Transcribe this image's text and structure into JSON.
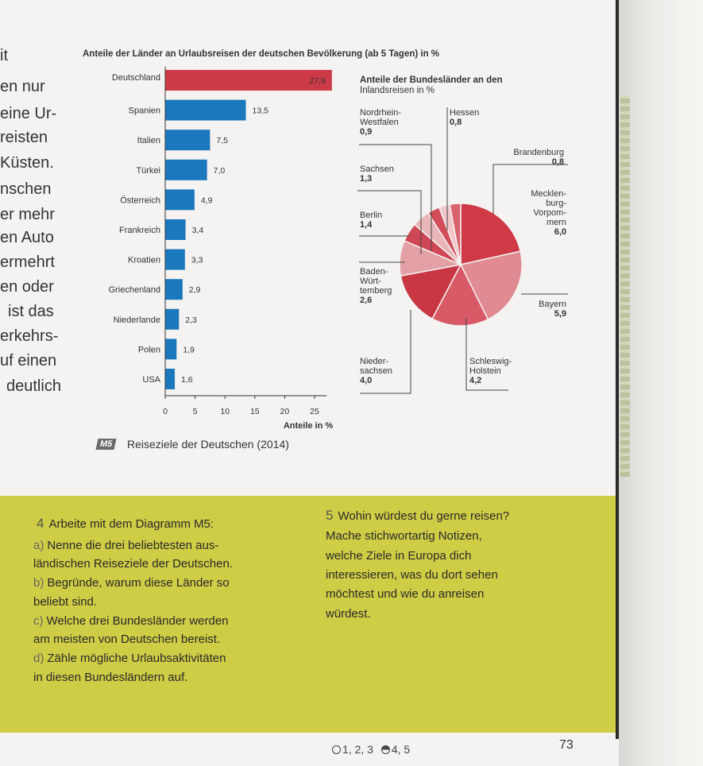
{
  "left_text_cut": [
    "it",
    "en nur",
    "eine Ur-",
    "reisten",
    "Küsten.",
    "nschen",
    "er mehr",
    "en Auto",
    "ermehrt",
    "en oder",
    "ist das",
    "erkehrs-",
    "uf einen",
    "deutlich"
  ],
  "chart_data": [
    {
      "type": "bar",
      "title": "Anteile der Länder an Urlaubsreisen der deutschen Bevölkerung (ab 5 Tagen) in %",
      "categories": [
        "Deutschland",
        "Spanien",
        "Italien",
        "Türkei",
        "Österreich",
        "Frankreich",
        "Kroatien",
        "Griechenland",
        "Niederlande",
        "Polen",
        "USA"
      ],
      "values": [
        27.9,
        13.5,
        7.5,
        7.0,
        4.9,
        3.4,
        3.3,
        2.9,
        2.3,
        1.9,
        1.6
      ],
      "value_labels": [
        "27,9",
        "13,5",
        "7,5",
        "7,0",
        "4,9",
        "3,4",
        "3,3",
        "2,9",
        "2,3",
        "1,9",
        "1,6"
      ],
      "xlabel": "Anteile in %",
      "xticks": [
        "0",
        "5",
        "10",
        "15",
        "20",
        "25"
      ],
      "xlim": [
        0,
        27
      ],
      "colors": {
        "highlight": "#cc3a48",
        "bar": "#1c78bd"
      }
    },
    {
      "type": "pie",
      "title": "Anteile der Bundesländer an den",
      "subtitle": "Inlandsreisen in %",
      "slices": [
        {
          "label": "Mecklen-|burg-|Vorpom-|mern",
          "value": 6.0,
          "value_label": "6,0",
          "color": "#cf3a47"
        },
        {
          "label": "Bayern",
          "value": 5.9,
          "value_label": "5,9",
          "color": "#e08a92"
        },
        {
          "label": "Schleswig-|Holstein",
          "value": 4.2,
          "value_label": "4,2",
          "color": "#d85a66"
        },
        {
          "label": "Nieder-|sachsen",
          "value": 4.0,
          "value_label": "4,0",
          "color": "#c93744"
        },
        {
          "label": "Baden-|Würt-|temberg",
          "value": 2.6,
          "value_label": "2,6",
          "color": "#e3a0a6"
        },
        {
          "label": "Berlin",
          "value": 1.4,
          "value_label": "1,4",
          "color": "#cf4654"
        },
        {
          "label": "Sachsen",
          "value": 1.3,
          "value_label": "1,3",
          "color": "#e9b5b9"
        },
        {
          "label": "Nordrhein-|Westfalen",
          "value": 0.9,
          "value_label": "0,9",
          "color": "#d24c59"
        },
        {
          "label": "Hessen",
          "value": 0.8,
          "value_label": "0,8",
          "color": "#f0c6c9"
        },
        {
          "label": "Brandenburg",
          "value": 0.8,
          "value_label": "0,8",
          "color": "#d9636e"
        }
      ]
    }
  ],
  "caption": {
    "badge": "M5",
    "text": "Reiseziele der Deutschen (2014)"
  },
  "tasks": {
    "task4": {
      "number": "4",
      "title": "Arbeite mit dem Diagramm M5:",
      "a": {
        "letter": "a)",
        "l1": "Nenne die drei beliebtesten aus-",
        "l2": "ländischen Reiseziele der Deutschen."
      },
      "b": {
        "letter": "b)",
        "l1": "Begründe, warum diese Länder so",
        "l2": "beliebt sind."
      },
      "c": {
        "letter": "c)",
        "l1": "Welche drei Bundesländer werden",
        "l2": "am meisten von Deutschen bereist."
      },
      "d": {
        "letter": "d)",
        "l1": "Zähle mögliche Urlaubsaktivitäten",
        "l2": "in diesen Bundesländern auf."
      }
    },
    "task5": {
      "number": "5",
      "lines": [
        "Wohin würdest du gerne reisen?",
        "Mache stichwortartig Notizen,",
        "welche Ziele in Europa dich",
        "interessieren, was du dort sehen",
        "möchtest und wie du anreisen",
        "würdest."
      ]
    }
  },
  "footer": {
    "levels_basic": "1, 2, 3",
    "levels_advanced": "4, 5",
    "page_number": "73"
  }
}
